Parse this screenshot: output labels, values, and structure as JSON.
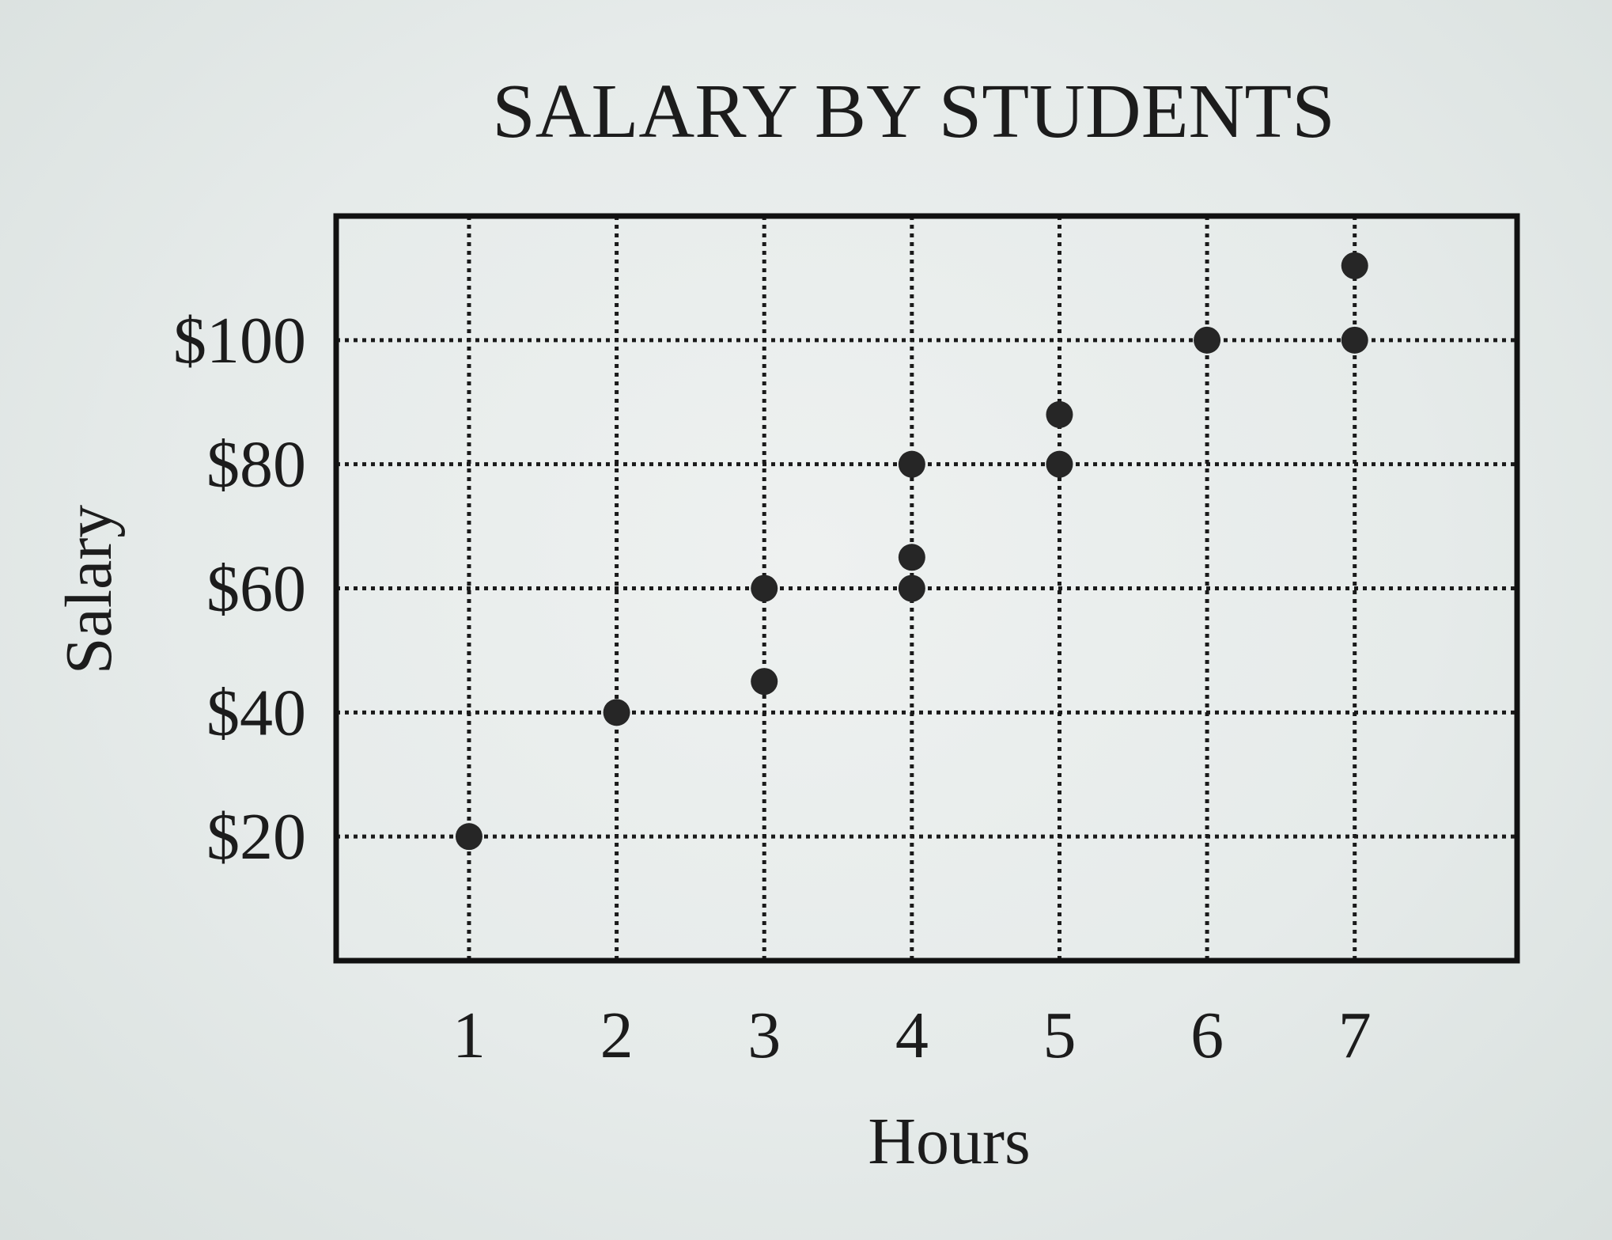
{
  "chart_data": {
    "type": "scatter",
    "title": "SALARY BY STUDENTS",
    "xlabel": "Hours",
    "ylabel": "Salary",
    "x_ticks": [
      1,
      2,
      3,
      4,
      5,
      6,
      7
    ],
    "x_tick_labels": [
      "1",
      "2",
      "3",
      "4",
      "5",
      "6",
      "7"
    ],
    "y_ticks": [
      20,
      40,
      60,
      80,
      100
    ],
    "y_tick_labels": [
      "$20",
      "$40",
      "$60",
      "$80",
      "$100"
    ],
    "xlim": [
      0.1,
      8.1
    ],
    "ylim": [
      0,
      120
    ],
    "grid": true,
    "grid_style": "dotted",
    "legend": "none",
    "series": [
      {
        "x": [
          1,
          2,
          3,
          3,
          4,
          4,
          4,
          5,
          5,
          6,
          7,
          7
        ],
        "y": [
          20,
          40,
          45,
          60,
          60,
          65,
          80,
          80,
          88,
          100,
          100,
          112
        ]
      }
    ]
  }
}
